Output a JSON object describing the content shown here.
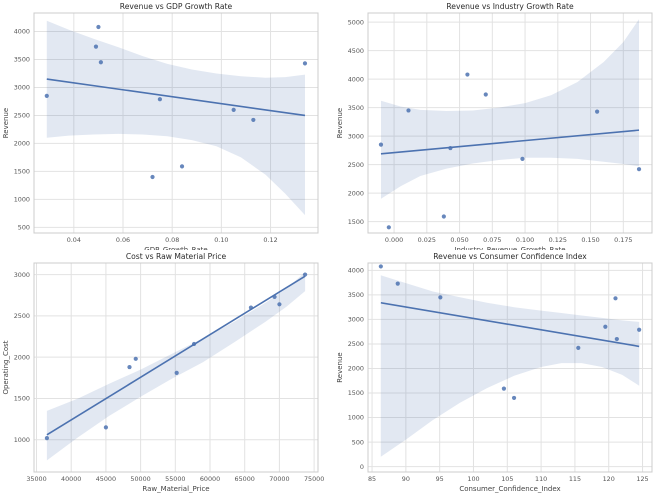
{
  "figure": {
    "background": "#ffffff",
    "accent": "#4c72b0",
    "band_opacity": 0.16,
    "grid_color": "#e2e2e2",
    "spine_color": "#cccccc",
    "title_color": "#2b2b2b",
    "label_color": "#444444",
    "tick_color": "#555555"
  },
  "chart_data": [
    {
      "type": "scatter",
      "title": "Revenue vs GDP Growth Rate",
      "xlabel": "GDP_Growth_Rate",
      "ylabel": "Revenue",
      "xlim": [
        0.0238,
        0.1393
      ],
      "ylim": [
        400,
        4330
      ],
      "xticks": [
        0.04,
        0.06,
        0.08,
        0.1,
        0.12
      ],
      "xtick_labels": [
        "0.04",
        "0.06",
        "0.08",
        "0.10",
        "0.12"
      ],
      "yticks": [
        500,
        1000,
        1500,
        2000,
        2500,
        3000,
        3500,
        4000
      ],
      "ytick_labels": [
        "500",
        "1000",
        "1500",
        "2000",
        "2500",
        "3000",
        "3500",
        "4000"
      ],
      "grid": true,
      "legend": null,
      "points": [
        [
          0.029,
          2850
        ],
        [
          0.05,
          4080
        ],
        [
          0.049,
          3730
        ],
        [
          0.051,
          3450
        ],
        [
          0.075,
          2790
        ],
        [
          0.072,
          1400
        ],
        [
          0.084,
          1590
        ],
        [
          0.105,
          2600
        ],
        [
          0.113,
          2420
        ],
        [
          0.134,
          3430
        ]
      ],
      "regression": {
        "x": [
          0.029,
          0.134
        ],
        "y": [
          3150,
          2500
        ]
      },
      "ci_band": {
        "x": [
          0.029,
          0.038,
          0.048,
          0.058,
          0.068,
          0.078,
          0.088,
          0.098,
          0.108,
          0.118,
          0.126,
          0.134
        ],
        "upper": [
          4190,
          4030,
          3870,
          3720,
          3560,
          3420,
          3320,
          3250,
          3200,
          3175,
          3185,
          3230
        ],
        "lower": [
          2100,
          2140,
          2160,
          2170,
          2160,
          2130,
          2060,
          1950,
          1750,
          1440,
          1100,
          720
        ]
      }
    },
    {
      "type": "scatter",
      "title": "Revenue vs Industry Growth Rate",
      "xlabel": "Industry_Revenue_Growth_Rate",
      "ylabel": "Revenue",
      "xlim": [
        -0.0199,
        0.1969
      ],
      "ylim": [
        1300,
        5160
      ],
      "xticks": [
        0.0,
        0.025,
        0.05,
        0.075,
        0.1,
        0.125,
        0.15,
        0.175
      ],
      "xtick_labels": [
        "0.000",
        "0.025",
        "0.050",
        "0.075",
        "0.100",
        "0.125",
        "0.150",
        "0.175"
      ],
      "yticks": [
        1500,
        2000,
        2500,
        3000,
        3500,
        4000,
        4500,
        5000
      ],
      "ytick_labels": [
        "1500",
        "2000",
        "2500",
        "3000",
        "3500",
        "4000",
        "4500",
        "5000"
      ],
      "grid": true,
      "legend": null,
      "points": [
        [
          -0.01,
          2850
        ],
        [
          -0.004,
          1400
        ],
        [
          0.011,
          3450
        ],
        [
          0.038,
          1590
        ],
        [
          0.043,
          2790
        ],
        [
          0.056,
          4080
        ],
        [
          0.07,
          3730
        ],
        [
          0.098,
          2600
        ],
        [
          0.155,
          3430
        ],
        [
          0.187,
          2420
        ]
      ],
      "regression": {
        "x": [
          -0.01,
          0.187
        ],
        "y": [
          2690,
          3105
        ]
      },
      "ci_band": {
        "x": [
          -0.01,
          0.005,
          0.02,
          0.04,
          0.06,
          0.08,
          0.1,
          0.12,
          0.14,
          0.16,
          0.175,
          0.187
        ],
        "upper": [
          3620,
          3520,
          3460,
          3440,
          3450,
          3500,
          3580,
          3720,
          3950,
          4300,
          4650,
          5050
        ],
        "lower": [
          1900,
          2120,
          2300,
          2430,
          2520,
          2580,
          2620,
          2620,
          2600,
          2550,
          2510,
          2470
        ]
      }
    },
    {
      "type": "scatter",
      "title": "Cost vs Raw Material Price",
      "xlabel": "Raw_Material_Price",
      "ylabel": "Operating_Cost",
      "xlim": [
        34640,
        75560
      ],
      "ylim": [
        610,
        3140
      ],
      "xticks": [
        35000,
        40000,
        45000,
        50000,
        55000,
        60000,
        65000,
        70000,
        75000
      ],
      "xtick_labels": [
        "35000",
        "40000",
        "45000",
        "50000",
        "55000",
        "60000",
        "65000",
        "70000",
        "75000"
      ],
      "yticks": [
        1000,
        1500,
        2000,
        2500,
        3000
      ],
      "ytick_labels": [
        "1000",
        "1500",
        "2000",
        "2500",
        "3000"
      ],
      "grid": true,
      "legend": null,
      "points": [
        [
          36500,
          1020
        ],
        [
          45000,
          1150
        ],
        [
          48400,
          1880
        ],
        [
          49300,
          1980
        ],
        [
          55200,
          1810
        ],
        [
          57700,
          2160
        ],
        [
          65900,
          2600
        ],
        [
          69300,
          2730
        ],
        [
          70000,
          2640
        ],
        [
          73700,
          3000
        ]
      ],
      "regression": {
        "x": [
          36500,
          73700
        ],
        "y": [
          1060,
          2980
        ]
      },
      "ci_band": {
        "x": [
          36500,
          41000,
          45500,
          50000,
          54500,
          59000,
          63500,
          68000,
          71000,
          73700
        ],
        "upper": [
          1350,
          1500,
          1680,
          1850,
          2040,
          2230,
          2430,
          2660,
          2830,
          3030
        ],
        "lower": [
          750,
          1030,
          1290,
          1520,
          1740,
          1940,
          2180,
          2430,
          2610,
          2800
        ]
      }
    },
    {
      "type": "scatter",
      "title": "Revenue vs Consumer Confidence Index",
      "xlabel": "Consumer_Confidence_Index",
      "ylabel": "Revenue",
      "xlim": [
        84.4,
        126.4
      ],
      "ylim": [
        -110,
        4150
      ],
      "xticks": [
        85,
        90,
        95,
        100,
        105,
        110,
        115,
        120,
        125
      ],
      "xtick_labels": [
        "85",
        "90",
        "95",
        "100",
        "105",
        "110",
        "115",
        "120",
        "125"
      ],
      "yticks": [
        0,
        500,
        1000,
        1500,
        2000,
        2500,
        3000,
        3500,
        4000
      ],
      "ytick_labels": [
        "0",
        "500",
        "1000",
        "1500",
        "2000",
        "2500",
        "3000",
        "3500",
        "4000"
      ],
      "grid": true,
      "legend": null,
      "points": [
        [
          86.3,
          4080
        ],
        [
          88.8,
          3730
        ],
        [
          95.1,
          3450
        ],
        [
          104.5,
          1590
        ],
        [
          106.0,
          1400
        ],
        [
          115.5,
          2420
        ],
        [
          119.5,
          2850
        ],
        [
          121.0,
          3430
        ],
        [
          121.2,
          2600
        ],
        [
          124.5,
          2790
        ]
      ],
      "regression": {
        "x": [
          86.3,
          124.5
        ],
        "y": [
          3340,
          2450
        ]
      },
      "ci_band": {
        "x": [
          86.3,
          90,
          94,
          98,
          102,
          106,
          110,
          113,
          116,
          119,
          122,
          124.5
        ],
        "upper": [
          3900,
          3740,
          3570,
          3450,
          3340,
          3250,
          3180,
          3130,
          3080,
          3030,
          2980,
          2950
        ],
        "lower": [
          200,
          550,
          950,
          1300,
          1600,
          1850,
          2030,
          2110,
          2110,
          2030,
          1870,
          1650
        ]
      }
    }
  ]
}
